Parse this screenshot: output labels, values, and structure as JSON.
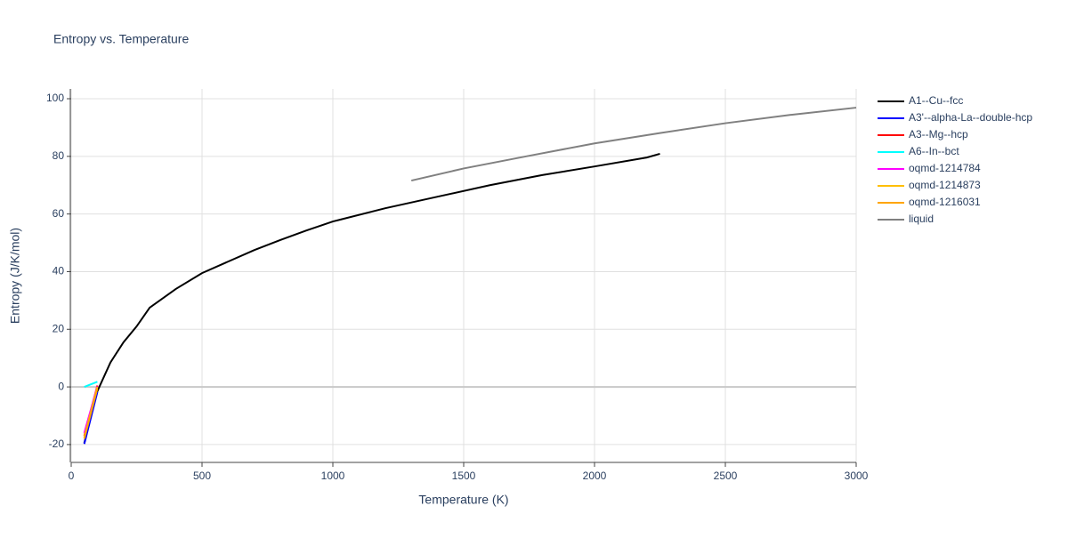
{
  "chart_data": {
    "type": "line",
    "title": "Entropy vs. Temperature",
    "x_label": "Temperature (K)",
    "y_label": "Entropy (J/K/mol)",
    "xlim": [
      0,
      3000
    ],
    "ylim": [
      -26.2,
      103.4
    ],
    "xticks": [
      0,
      500,
      1000,
      1500,
      2000,
      2500,
      3000
    ],
    "yticks": [
      -20,
      0,
      20,
      40,
      60,
      80,
      100
    ],
    "grid": true,
    "legend": "right",
    "series": [
      {
        "name": "A1--Cu--fcc",
        "color": "#000000",
        "x": [
          50,
          100,
          150,
          200,
          250,
          300,
          400,
          500,
          600,
          700,
          800,
          900,
          1000,
          1200,
          1400,
          1600,
          1800,
          2000,
          2200,
          2250
        ],
        "values": [
          -19.5,
          -1.5,
          8.5,
          15.5,
          21,
          27.5,
          34,
          39.5,
          43.5,
          47.5,
          51,
          54.3,
          57.4,
          62,
          66,
          70,
          73.5,
          76.5,
          79.6,
          80.9
        ]
      },
      {
        "name": "A3'--alpha-La--double-hcp",
        "color": "#0000ff",
        "x": [
          50,
          100
        ],
        "values": [
          -19.8,
          -1.8
        ]
      },
      {
        "name": "A3--Mg--hcp",
        "color": "#ff0000",
        "x": [
          50,
          100
        ],
        "values": [
          -17,
          0.5
        ]
      },
      {
        "name": "A6--In--bct",
        "color": "#00ffff",
        "x": [
          50,
          100
        ],
        "values": [
          0,
          1.8
        ]
      },
      {
        "name": "oqmd-1214784",
        "color": "#ff00ff",
        "x": [
          50,
          100
        ],
        "values": [
          -16,
          0.2
        ]
      },
      {
        "name": "oqmd-1214873",
        "color": "#ffbf00",
        "x": [
          50,
          100
        ],
        "values": [
          -17.5,
          0
        ]
      },
      {
        "name": "oqmd-1216031",
        "color": "#ffa500",
        "x": [
          50,
          100
        ],
        "values": [
          -18,
          -0.5
        ]
      },
      {
        "name": "liquid",
        "color": "#808080",
        "x": [
          1300,
          1500,
          1750,
          2000,
          2250,
          2500,
          2750,
          3000
        ],
        "values": [
          71.6,
          75.8,
          80.2,
          84.5,
          88.1,
          91.5,
          94.4,
          96.9
        ]
      }
    ]
  }
}
